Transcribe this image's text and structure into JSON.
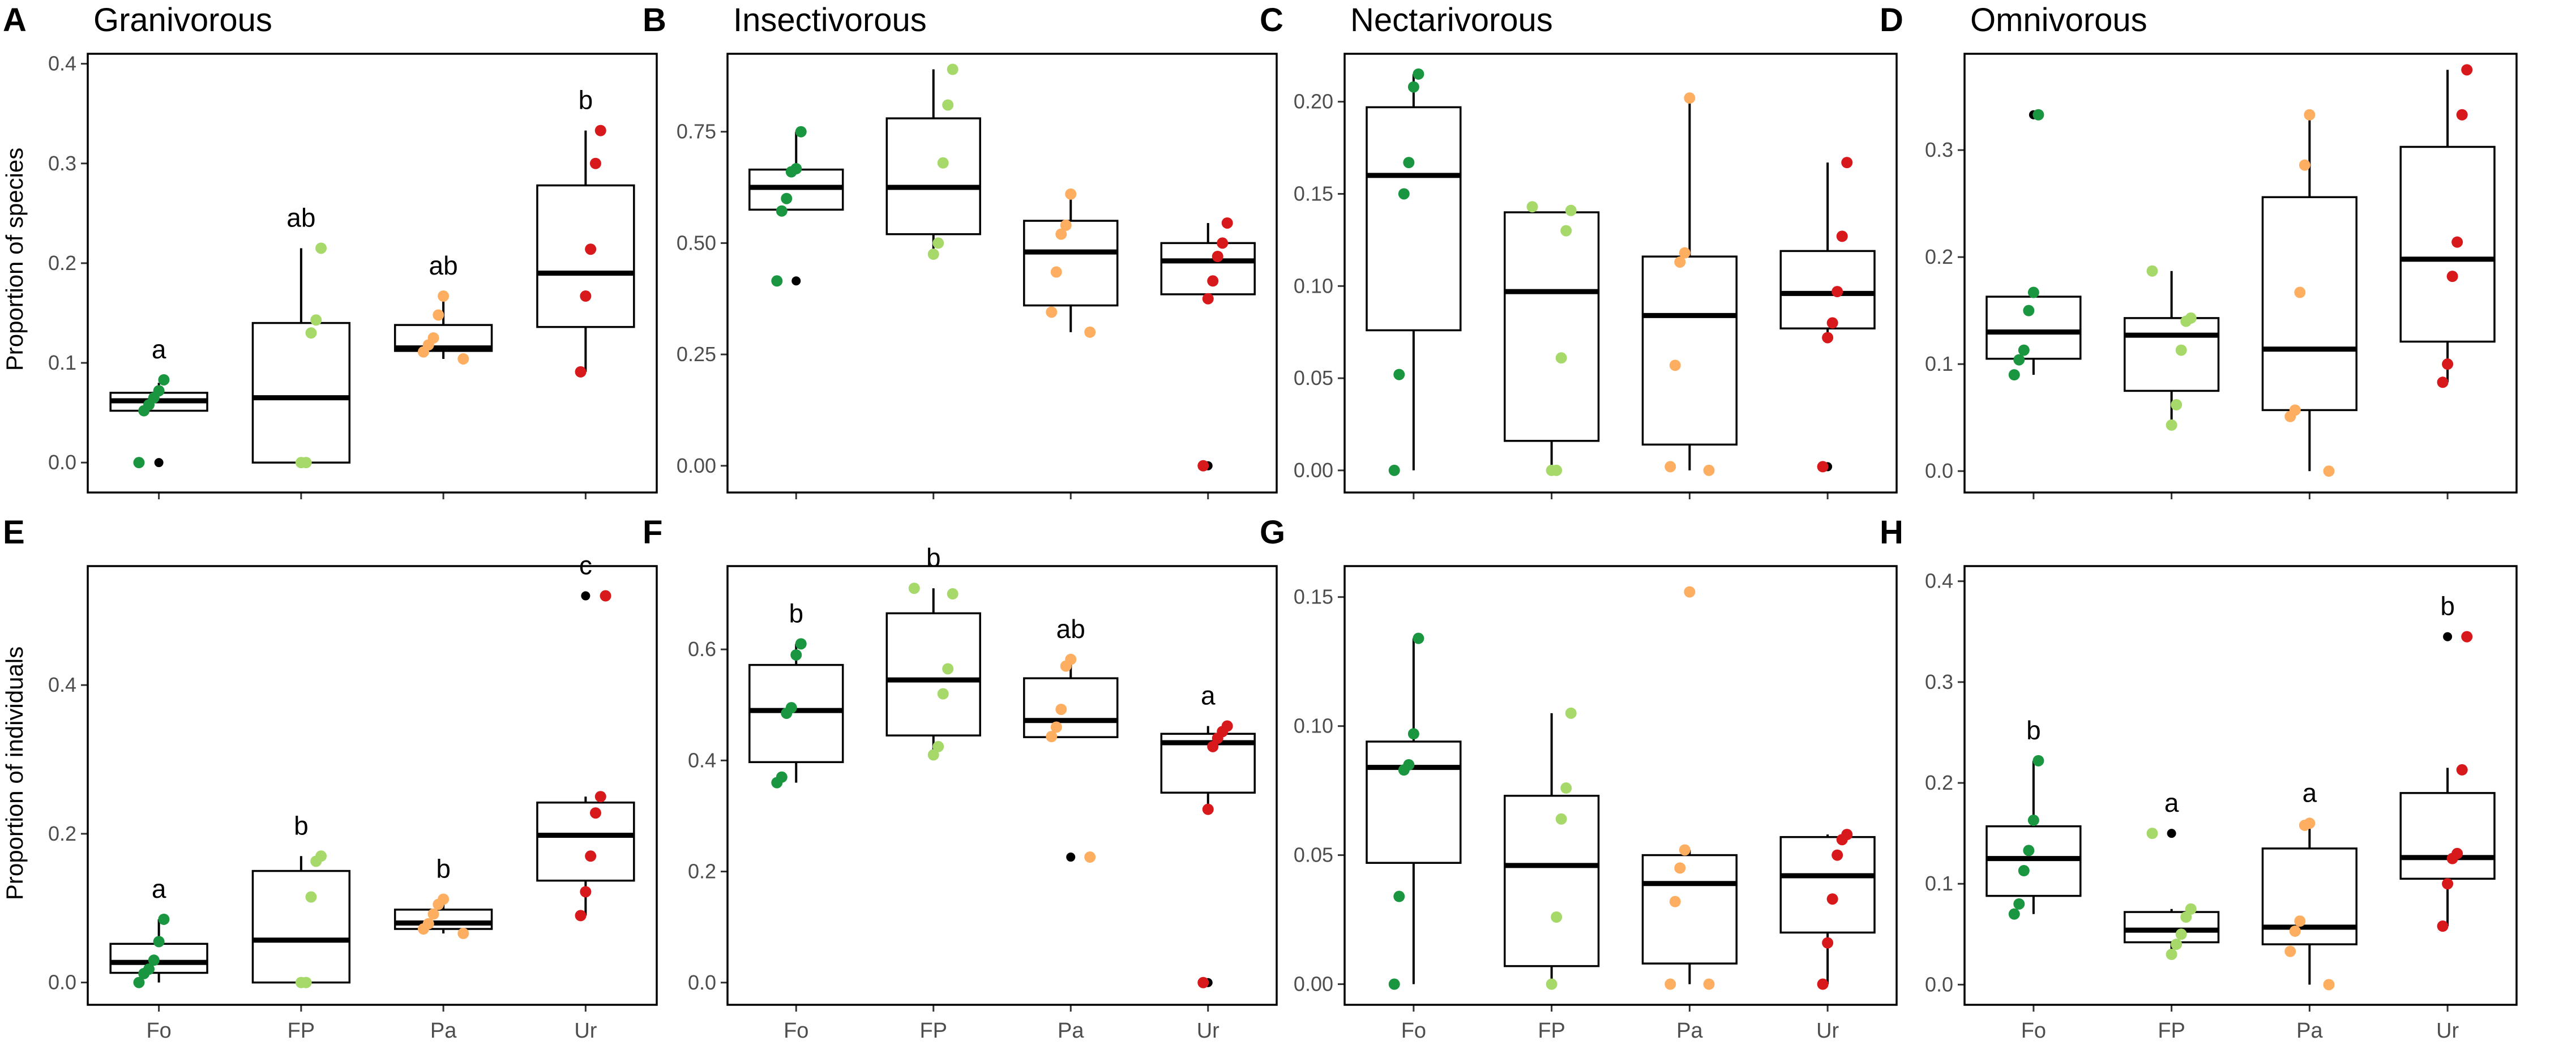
{
  "figure": {
    "row_labels": [
      "Proportion of species",
      "Proportion of individuals"
    ],
    "categories": [
      "Fo",
      "FP",
      "Pa",
      "Ur"
    ],
    "colors": {
      "Fo": "#1a9641",
      "FP": "#a6d96a",
      "Pa": "#fdae61",
      "Ur": "#d7191c"
    }
  },
  "chart_data": [
    {
      "panel": "A",
      "title": "Granivorous",
      "type": "box",
      "row": 0,
      "col": 0,
      "ylabel": "Proportion of species",
      "ylim": [
        -0.03,
        0.41
      ],
      "yticks": [
        0.0,
        0.1,
        0.2,
        0.3,
        0.4
      ],
      "ytick_labels": [
        "0.0",
        "0.1",
        "0.2",
        "0.3",
        "0.4"
      ],
      "boxes": [
        {
          "cat": "Fo",
          "q1": 0.052,
          "median": 0.062,
          "q3": 0.07,
          "whisker_low": 0.052,
          "whisker_high": 0.08,
          "outliers": [
            0.0
          ],
          "sig": "a",
          "points": [
            0.0,
            0.052,
            0.058,
            0.065,
            0.072,
            0.083
          ]
        },
        {
          "cat": "FP",
          "q1": 0.0,
          "median": 0.065,
          "q3": 0.14,
          "whisker_low": 0.0,
          "whisker_high": 0.215,
          "outliers": [],
          "sig": "ab",
          "points": [
            0.0,
            0.0,
            0.13,
            0.143,
            0.215
          ]
        },
        {
          "cat": "Pa",
          "q1": 0.112,
          "median": 0.115,
          "q3": 0.138,
          "whisker_low": 0.104,
          "whisker_high": 0.167,
          "outliers": [],
          "sig": "ab",
          "points": [
            0.104,
            0.111,
            0.118,
            0.125,
            0.148,
            0.167
          ]
        },
        {
          "cat": "Ur",
          "q1": 0.136,
          "median": 0.19,
          "q3": 0.278,
          "whisker_low": 0.091,
          "whisker_high": 0.333,
          "outliers": [],
          "sig": "b",
          "points": [
            0.091,
            0.167,
            0.214,
            0.3,
            0.333
          ]
        }
      ]
    },
    {
      "panel": "B",
      "title": "Insectivorous",
      "type": "box",
      "row": 0,
      "col": 1,
      "ylim": [
        -0.06,
        0.925
      ],
      "yticks": [
        0.0,
        0.25,
        0.5,
        0.75
      ],
      "ytick_labels": [
        "0.00",
        "0.25",
        "0.50",
        "0.75"
      ],
      "boxes": [
        {
          "cat": "Fo",
          "q1": 0.575,
          "median": 0.625,
          "q3": 0.665,
          "whisker_low": 0.575,
          "whisker_high": 0.75,
          "outliers": [
            0.415
          ],
          "sig": "",
          "points": [
            0.415,
            0.572,
            0.6,
            0.66,
            0.667,
            0.75
          ]
        },
        {
          "cat": "FP",
          "q1": 0.52,
          "median": 0.625,
          "q3": 0.78,
          "whisker_low": 0.475,
          "whisker_high": 0.89,
          "outliers": [],
          "sig": "",
          "points": [
            0.475,
            0.5,
            0.68,
            0.81,
            0.89
          ]
        },
        {
          "cat": "Pa",
          "q1": 0.36,
          "median": 0.48,
          "q3": 0.55,
          "whisker_low": 0.3,
          "whisker_high": 0.61,
          "outliers": [],
          "sig": "",
          "points": [
            0.3,
            0.345,
            0.435,
            0.52,
            0.54,
            0.61
          ]
        },
        {
          "cat": "Ur",
          "q1": 0.385,
          "median": 0.46,
          "q3": 0.5,
          "whisker_low": 0.375,
          "whisker_high": 0.545,
          "outliers": [
            0.0
          ],
          "sig": "",
          "points": [
            0.0,
            0.375,
            0.415,
            0.47,
            0.5,
            0.545
          ]
        }
      ]
    },
    {
      "panel": "C",
      "title": "Nectarivorous",
      "type": "box",
      "row": 0,
      "col": 2,
      "ylim": [
        -0.012,
        0.226
      ],
      "yticks": [
        0.0,
        0.05,
        0.1,
        0.15,
        0.2
      ],
      "ytick_labels": [
        "0.00",
        "0.05",
        "0.10",
        "0.15",
        "0.20"
      ],
      "boxes": [
        {
          "cat": "Fo",
          "q1": 0.076,
          "median": 0.16,
          "q3": 0.197,
          "whisker_low": 0.0,
          "whisker_high": 0.215,
          "outliers": [],
          "sig": "",
          "points": [
            0.0,
            0.052,
            0.15,
            0.167,
            0.208,
            0.215
          ]
        },
        {
          "cat": "FP",
          "q1": 0.016,
          "median": 0.097,
          "q3": 0.14,
          "whisker_low": 0.0,
          "whisker_high": 0.14,
          "outliers": [],
          "sig": "",
          "points": [
            0.0,
            0.0,
            0.061,
            0.13,
            0.141,
            0.143
          ]
        },
        {
          "cat": "Pa",
          "q1": 0.014,
          "median": 0.084,
          "q3": 0.116,
          "whisker_low": 0.0,
          "whisker_high": 0.2,
          "outliers": [],
          "sig": "",
          "points": [
            0.0,
            0.002,
            0.057,
            0.113,
            0.118,
            0.202
          ]
        },
        {
          "cat": "Ur",
          "q1": 0.077,
          "median": 0.096,
          "q3": 0.119,
          "whisker_low": 0.072,
          "whisker_high": 0.167,
          "outliers": [
            0.002
          ],
          "sig": "",
          "points": [
            0.002,
            0.072,
            0.08,
            0.097,
            0.127,
            0.167
          ]
        }
      ]
    },
    {
      "panel": "D",
      "title": "Omnivorous",
      "type": "box",
      "row": 0,
      "col": 3,
      "ylim": [
        -0.02,
        0.39
      ],
      "yticks": [
        0.0,
        0.1,
        0.2,
        0.3
      ],
      "ytick_labels": [
        "0.0",
        "0.1",
        "0.2",
        "0.3"
      ],
      "boxes": [
        {
          "cat": "Fo",
          "q1": 0.105,
          "median": 0.13,
          "q3": 0.163,
          "whisker_low": 0.09,
          "whisker_high": 0.167,
          "outliers": [
            0.333
          ],
          "sig": "",
          "points": [
            0.09,
            0.104,
            0.113,
            0.15,
            0.167,
            0.333
          ]
        },
        {
          "cat": "FP",
          "q1": 0.075,
          "median": 0.127,
          "q3": 0.143,
          "whisker_low": 0.043,
          "whisker_high": 0.187,
          "outliers": [],
          "sig": "",
          "points": [
            0.043,
            0.062,
            0.113,
            0.14,
            0.143,
            0.187
          ]
        },
        {
          "cat": "Pa",
          "q1": 0.057,
          "median": 0.114,
          "q3": 0.256,
          "whisker_low": 0.0,
          "whisker_high": 0.333,
          "outliers": [],
          "sig": "",
          "points": [
            0.0,
            0.051,
            0.057,
            0.167,
            0.286,
            0.333
          ]
        },
        {
          "cat": "Ur",
          "q1": 0.121,
          "median": 0.198,
          "q3": 0.303,
          "whisker_low": 0.083,
          "whisker_high": 0.375,
          "outliers": [],
          "sig": "",
          "points": [
            0.083,
            0.1,
            0.182,
            0.214,
            0.333,
            0.375
          ]
        }
      ]
    },
    {
      "panel": "E",
      "title": "",
      "type": "box",
      "row": 1,
      "col": 0,
      "ylabel": "Proportion of individuals",
      "ylim": [
        -0.03,
        0.56
      ],
      "yticks": [
        0.0,
        0.2,
        0.4
      ],
      "ytick_labels": [
        "0.0",
        "0.2",
        "0.4"
      ],
      "boxes": [
        {
          "cat": "Fo",
          "q1": 0.013,
          "median": 0.027,
          "q3": 0.052,
          "whisker_low": 0.0,
          "whisker_high": 0.085,
          "outliers": [],
          "sig": "a",
          "points": [
            0.0,
            0.012,
            0.018,
            0.03,
            0.055,
            0.085
          ]
        },
        {
          "cat": "FP",
          "q1": 0.0,
          "median": 0.057,
          "q3": 0.15,
          "whisker_low": 0.0,
          "whisker_high": 0.17,
          "outliers": [],
          "sig": "b",
          "points": [
            0.0,
            0.0,
            0.115,
            0.163,
            0.17
          ]
        },
        {
          "cat": "Pa",
          "q1": 0.072,
          "median": 0.08,
          "q3": 0.098,
          "whisker_low": 0.066,
          "whisker_high": 0.112,
          "outliers": [],
          "sig": "b",
          "points": [
            0.066,
            0.072,
            0.079,
            0.092,
            0.105,
            0.112
          ]
        },
        {
          "cat": "Ur",
          "q1": 0.137,
          "median": 0.198,
          "q3": 0.242,
          "whisker_low": 0.09,
          "whisker_high": 0.25,
          "outliers": [
            0.52
          ],
          "sig": "c",
          "points": [
            0.09,
            0.122,
            0.17,
            0.228,
            0.25,
            0.52
          ]
        }
      ]
    },
    {
      "panel": "F",
      "title": "",
      "type": "box",
      "row": 1,
      "col": 1,
      "ylim": [
        -0.04,
        0.75
      ],
      "yticks": [
        0.0,
        0.2,
        0.4,
        0.6
      ],
      "ytick_labels": [
        "0.0",
        "0.2",
        "0.4",
        "0.6"
      ],
      "boxes": [
        {
          "cat": "Fo",
          "q1": 0.397,
          "median": 0.49,
          "q3": 0.572,
          "whisker_low": 0.36,
          "whisker_high": 0.61,
          "outliers": [],
          "sig": "b",
          "points": [
            0.36,
            0.37,
            0.485,
            0.495,
            0.59,
            0.61
          ]
        },
        {
          "cat": "FP",
          "q1": 0.445,
          "median": 0.545,
          "q3": 0.665,
          "whisker_low": 0.41,
          "whisker_high": 0.71,
          "outliers": [],
          "sig": "b",
          "points": [
            0.41,
            0.425,
            0.52,
            0.565,
            0.7,
            0.71
          ]
        },
        {
          "cat": "Pa",
          "q1": 0.442,
          "median": 0.472,
          "q3": 0.548,
          "whisker_low": 0.442,
          "whisker_high": 0.582,
          "outliers": [
            0.226
          ],
          "sig": "ab",
          "points": [
            0.226,
            0.443,
            0.46,
            0.492,
            0.57,
            0.582
          ]
        },
        {
          "cat": "Ur",
          "q1": 0.342,
          "median": 0.432,
          "q3": 0.448,
          "whisker_low": 0.312,
          "whisker_high": 0.462,
          "outliers": [
            0.0
          ],
          "sig": "a",
          "points": [
            0.0,
            0.312,
            0.425,
            0.44,
            0.452,
            0.462
          ]
        }
      ]
    },
    {
      "panel": "G",
      "title": "",
      "type": "box",
      "row": 1,
      "col": 2,
      "ylim": [
        -0.008,
        0.162
      ],
      "yticks": [
        0.0,
        0.05,
        0.1,
        0.15
      ],
      "ytick_labels": [
        "0.00",
        "0.05",
        "0.10",
        "0.15"
      ],
      "boxes": [
        {
          "cat": "Fo",
          "q1": 0.047,
          "median": 0.084,
          "q3": 0.094,
          "whisker_low": 0.0,
          "whisker_high": 0.134,
          "outliers": [],
          "sig": "",
          "points": [
            0.0,
            0.034,
            0.083,
            0.085,
            0.097,
            0.134
          ]
        },
        {
          "cat": "FP",
          "q1": 0.007,
          "median": 0.046,
          "q3": 0.073,
          "whisker_low": 0.0,
          "whisker_high": 0.105,
          "outliers": [],
          "sig": "",
          "points": [
            0.0,
            0.026,
            0.064,
            0.076,
            0.105
          ]
        },
        {
          "cat": "Pa",
          "q1": 0.008,
          "median": 0.039,
          "q3": 0.05,
          "whisker_low": 0.0,
          "whisker_high": 0.052,
          "outliers": [
            0.152
          ],
          "sig": "",
          "points": [
            0.0,
            0.0,
            0.032,
            0.045,
            0.052,
            0.152
          ]
        },
        {
          "cat": "Ur",
          "q1": 0.02,
          "median": 0.042,
          "q3": 0.057,
          "whisker_low": 0.0,
          "whisker_high": 0.058,
          "outliers": [],
          "sig": "",
          "points": [
            0.0,
            0.016,
            0.033,
            0.05,
            0.056,
            0.058
          ]
        }
      ]
    },
    {
      "panel": "H",
      "title": "",
      "type": "box",
      "row": 1,
      "col": 3,
      "ylim": [
        -0.02,
        0.415
      ],
      "yticks": [
        0.0,
        0.1,
        0.2,
        0.3,
        0.4
      ],
      "ytick_labels": [
        "0.0",
        "0.1",
        "0.2",
        "0.3",
        "0.4"
      ],
      "boxes": [
        {
          "cat": "Fo",
          "q1": 0.088,
          "median": 0.125,
          "q3": 0.157,
          "whisker_low": 0.07,
          "whisker_high": 0.222,
          "outliers": [],
          "sig": "b",
          "points": [
            0.07,
            0.08,
            0.113,
            0.133,
            0.163,
            0.222
          ]
        },
        {
          "cat": "FP",
          "q1": 0.042,
          "median": 0.054,
          "q3": 0.072,
          "whisker_low": 0.03,
          "whisker_high": 0.075,
          "outliers": [
            0.15
          ],
          "sig": "a",
          "points": [
            0.03,
            0.04,
            0.05,
            0.067,
            0.075,
            0.15
          ]
        },
        {
          "cat": "Pa",
          "q1": 0.04,
          "median": 0.057,
          "q3": 0.135,
          "whisker_low": 0.0,
          "whisker_high": 0.16,
          "outliers": [],
          "sig": "a",
          "points": [
            0.0,
            0.033,
            0.053,
            0.063,
            0.158,
            0.16
          ]
        },
        {
          "cat": "Ur",
          "q1": 0.105,
          "median": 0.126,
          "q3": 0.19,
          "whisker_low": 0.058,
          "whisker_high": 0.215,
          "outliers": [
            0.345
          ],
          "sig": "b",
          "points": [
            0.058,
            0.1,
            0.125,
            0.13,
            0.213,
            0.345
          ]
        }
      ]
    }
  ]
}
